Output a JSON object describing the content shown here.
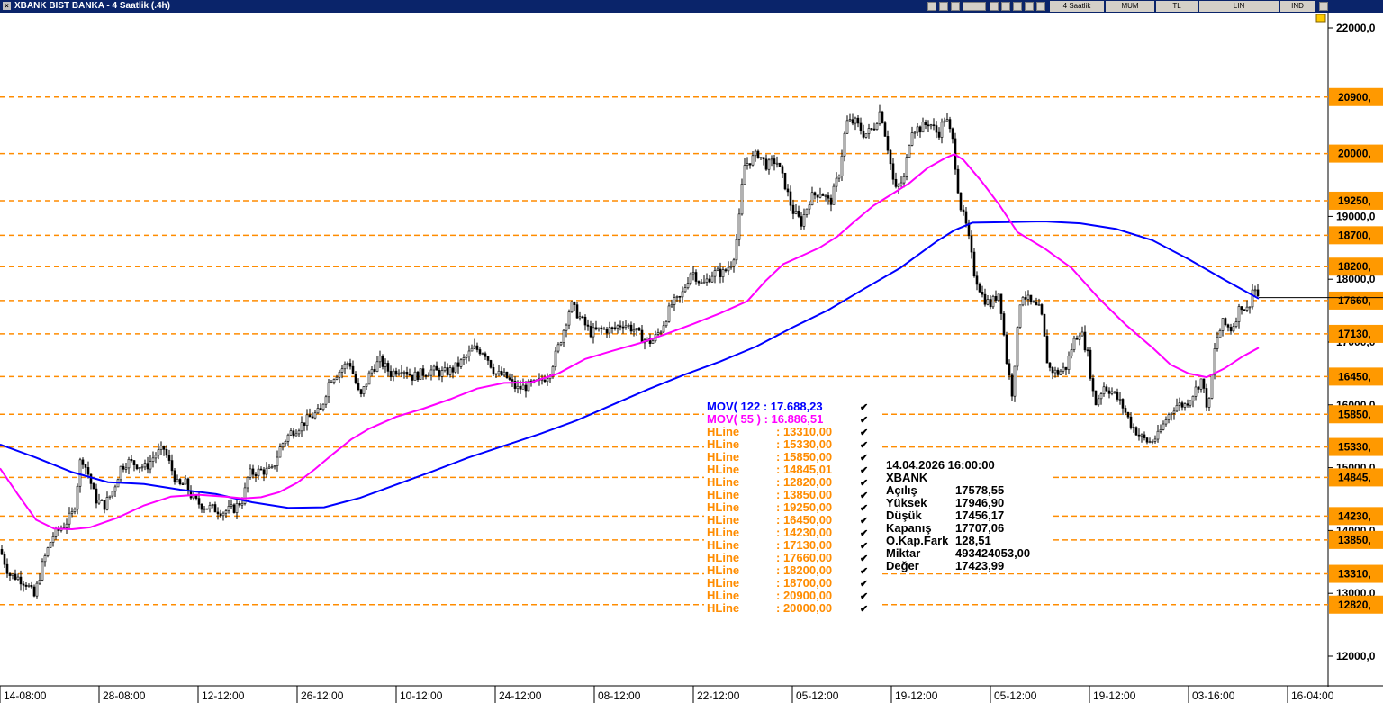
{
  "window": {
    "title": "XBANK BIST BANKA - 4 Saatlik (.4h)",
    "toolbar": {
      "interval": "4 Saatlik",
      "chart_style": "MUM",
      "currency": "TL",
      "scale": "LIN",
      "mode": "IND"
    }
  },
  "colors": {
    "mov122": "#0000ff",
    "mov55": "#ff00ff",
    "hline": "#ff8c00",
    "candle": "#000000",
    "hline_label_bg": "#ff9900"
  },
  "legend": {
    "mov122": "MOV( 122 : 17.688,23",
    "mov55": "MOV( 55 ) : 16.886,51",
    "hlines": [
      "HLine        : 13310,00",
      "HLine        : 15330,00",
      "HLine        : 15850,00",
      "HLine        : 14845,01",
      "HLine        : 12820,00",
      "HLine        : 13850,00",
      "HLine        : 19250,00",
      "HLine        : 16450,00",
      "HLine        : 14230,00",
      "HLine        : 17130,00",
      "HLine        : 17660,00",
      "HLine        : 18200,00",
      "HLine        : 18700,00",
      "HLine        : 20900,00",
      "HLine        : 20000,00"
    ]
  },
  "info": {
    "datetime": "14.04.2026  16:00:00",
    "symbol": "XBANK",
    "rows": [
      {
        "label": "Açılış",
        "value": "17578,55"
      },
      {
        "label": "Yüksek",
        "value": "17946,90"
      },
      {
        "label": "Düşük",
        "value": "17456,17"
      },
      {
        "label": "Kapanış",
        "value": "17707,06"
      },
      {
        "label": "O.Kap.Fark",
        "value": "128,51"
      },
      {
        "label": "Miktar",
        "value": "493424053,00"
      },
      {
        "label": "Değer",
        "value": "17423,99"
      }
    ]
  },
  "chart_data": {
    "type": "candlestick",
    "y_ticks": [
      "22000,0",
      "19000,0",
      "18000,0",
      "17000,0",
      "16000,0",
      "15000,0",
      "14000,0",
      "13000,0",
      "12000,0"
    ],
    "y_tick_values": [
      22000,
      19000,
      18000,
      17000,
      16000,
      15000,
      14000,
      13000,
      12000
    ],
    "ylim": [
      11600,
      22200
    ],
    "x_ticks": [
      "14-08:00",
      "28-08:00",
      "12-12:00",
      "26-12:00",
      "10-12:00",
      "24-12:00",
      "08-12:00",
      "22-12:00",
      "05-12:00",
      "19-12:00",
      "05-12:00",
      "19-12:00",
      "03-16:00",
      "16-04:00"
    ],
    "hline_values": [
      20900,
      20000,
      19250,
      18700,
      18200,
      17660,
      17130,
      16450,
      15850,
      15330,
      14845,
      14230,
      13850,
      13310,
      12820
    ],
    "hline_labels": [
      "20900,",
      "20000,",
      "19250,",
      "18700,",
      "18200,",
      "17660,",
      "17130,",
      "16450,",
      "15850,",
      "15330,",
      "14845,",
      "14230,",
      "13850,",
      "13310,",
      "12820,"
    ],
    "last_close": 17707.06,
    "close_path": [
      [
        0,
        13700
      ],
      [
        10,
        13300
      ],
      [
        20,
        13250
      ],
      [
        30,
        13150
      ],
      [
        38,
        12950
      ],
      [
        48,
        13500
      ],
      [
        58,
        13900
      ],
      [
        72,
        14100
      ],
      [
        82,
        14300
      ],
      [
        90,
        15200
      ],
      [
        98,
        14900
      ],
      [
        106,
        14500
      ],
      [
        116,
        14400
      ],
      [
        126,
        14650
      ],
      [
        134,
        15000
      ],
      [
        142,
        15100
      ],
      [
        152,
        15050
      ],
      [
        162,
        15000
      ],
      [
        172,
        15200
      ],
      [
        182,
        15300
      ],
      [
        190,
        15000
      ],
      [
        198,
        14700
      ],
      [
        206,
        14750
      ],
      [
        214,
        14500
      ],
      [
        224,
        14400
      ],
      [
        236,
        14350
      ],
      [
        248,
        14300
      ],
      [
        260,
        14350
      ],
      [
        270,
        14500
      ],
      [
        276,
        14900
      ],
      [
        290,
        14950
      ],
      [
        302,
        14950
      ],
      [
        312,
        15350
      ],
      [
        322,
        15550
      ],
      [
        332,
        15650
      ],
      [
        344,
        15800
      ],
      [
        356,
        15900
      ],
      [
        366,
        16400
      ],
      [
        378,
        16550
      ],
      [
        388,
        16700
      ],
      [
        400,
        16100
      ],
      [
        412,
        16550
      ],
      [
        422,
        16700
      ],
      [
        434,
        16500
      ],
      [
        446,
        16600
      ],
      [
        458,
        16450
      ],
      [
        468,
        16500
      ],
      [
        480,
        16550
      ],
      [
        490,
        16500
      ],
      [
        502,
        16550
      ],
      [
        514,
        16700
      ],
      [
        526,
        16900
      ],
      [
        538,
        16850
      ],
      [
        550,
        16500
      ],
      [
        562,
        16450
      ],
      [
        574,
        16250
      ],
      [
        586,
        16300
      ],
      [
        598,
        16350
      ],
      [
        610,
        16500
      ],
      [
        622,
        17000
      ],
      [
        634,
        17600
      ],
      [
        646,
        17350
      ],
      [
        656,
        17150
      ],
      [
        668,
        17200
      ],
      [
        680,
        17200
      ],
      [
        692,
        17300
      ],
      [
        704,
        17200
      ],
      [
        714,
        17050
      ],
      [
        724,
        17000
      ],
      [
        734,
        17200
      ],
      [
        746,
        17600
      ],
      [
        756,
        17700
      ],
      [
        768,
        18150
      ],
      [
        780,
        17900
      ],
      [
        792,
        18100
      ],
      [
        804,
        18100
      ],
      [
        814,
        18300
      ],
      [
        820,
        18800
      ],
      [
        826,
        19800
      ],
      [
        834,
        19900
      ],
      [
        842,
        20000
      ],
      [
        852,
        19800
      ],
      [
        862,
        19900
      ],
      [
        872,
        19500
      ],
      [
        880,
        19100
      ],
      [
        890,
        18900
      ],
      [
        900,
        19300
      ],
      [
        912,
        19400
      ],
      [
        922,
        19200
      ],
      [
        932,
        19700
      ],
      [
        940,
        20500
      ],
      [
        950,
        20500
      ],
      [
        960,
        20300
      ],
      [
        970,
        20400
      ],
      [
        978,
        20700
      ],
      [
        986,
        20100
      ],
      [
        994,
        19400
      ],
      [
        1004,
        19600
      ],
      [
        1012,
        20400
      ],
      [
        1022,
        20400
      ],
      [
        1032,
        20500
      ],
      [
        1042,
        20300
      ],
      [
        1050,
        20600
      ],
      [
        1058,
        20200
      ],
      [
        1066,
        19200
      ],
      [
        1074,
        18800
      ],
      [
        1082,
        18100
      ],
      [
        1092,
        17700
      ],
      [
        1100,
        17600
      ],
      [
        1110,
        17800
      ],
      [
        1118,
        16700
      ],
      [
        1124,
        16200
      ],
      [
        1134,
        17800
      ],
      [
        1146,
        17600
      ],
      [
        1156,
        17500
      ],
      [
        1164,
        16600
      ],
      [
        1174,
        16500
      ],
      [
        1184,
        16600
      ],
      [
        1192,
        17000
      ],
      [
        1200,
        17200
      ],
      [
        1208,
        16800
      ],
      [
        1216,
        16000
      ],
      [
        1226,
        16300
      ],
      [
        1236,
        16200
      ],
      [
        1246,
        16000
      ],
      [
        1256,
        15700
      ],
      [
        1266,
        15500
      ],
      [
        1276,
        15400
      ],
      [
        1286,
        15500
      ],
      [
        1296,
        15800
      ],
      [
        1306,
        16000
      ],
      [
        1316,
        16000
      ],
      [
        1326,
        16200
      ],
      [
        1334,
        16400
      ],
      [
        1342,
        15900
      ],
      [
        1350,
        17000
      ],
      [
        1358,
        17300
      ],
      [
        1368,
        17200
      ],
      [
        1378,
        17600
      ],
      [
        1386,
        17500
      ],
      [
        1392,
        17900
      ],
      [
        1398,
        17700
      ]
    ],
    "mov55_path": [
      [
        0,
        14990
      ],
      [
        20,
        14570
      ],
      [
        40,
        14170
      ],
      [
        60,
        14030
      ],
      [
        80,
        14020
      ],
      [
        100,
        14050
      ],
      [
        130,
        14200
      ],
      [
        160,
        14400
      ],
      [
        190,
        14540
      ],
      [
        220,
        14570
      ],
      [
        250,
        14540
      ],
      [
        270,
        14510
      ],
      [
        290,
        14530
      ],
      [
        310,
        14610
      ],
      [
        330,
        14760
      ],
      [
        350,
        14980
      ],
      [
        370,
        15220
      ],
      [
        390,
        15450
      ],
      [
        410,
        15620
      ],
      [
        440,
        15810
      ],
      [
        470,
        15940
      ],
      [
        500,
        16090
      ],
      [
        530,
        16260
      ],
      [
        560,
        16350
      ],
      [
        590,
        16360
      ],
      [
        620,
        16500
      ],
      [
        650,
        16730
      ],
      [
        680,
        16860
      ],
      [
        710,
        16980
      ],
      [
        740,
        17130
      ],
      [
        770,
        17290
      ],
      [
        800,
        17460
      ],
      [
        830,
        17650
      ],
      [
        850,
        17970
      ],
      [
        870,
        18240
      ],
      [
        890,
        18370
      ],
      [
        910,
        18500
      ],
      [
        930,
        18680
      ],
      [
        950,
        18930
      ],
      [
        970,
        19170
      ],
      [
        990,
        19350
      ],
      [
        1010,
        19530
      ],
      [
        1030,
        19770
      ],
      [
        1050,
        19930
      ],
      [
        1060,
        19990
      ],
      [
        1070,
        19900
      ],
      [
        1090,
        19560
      ],
      [
        1110,
        19180
      ],
      [
        1130,
        18750
      ],
      [
        1160,
        18490
      ],
      [
        1190,
        18180
      ],
      [
        1220,
        17700
      ],
      [
        1250,
        17280
      ],
      [
        1280,
        16910
      ],
      [
        1300,
        16640
      ],
      [
        1320,
        16500
      ],
      [
        1340,
        16440
      ],
      [
        1360,
        16580
      ],
      [
        1380,
        16770
      ],
      [
        1398,
        16910
      ]
    ],
    "mov122_path": [
      [
        0,
        15370
      ],
      [
        40,
        15160
      ],
      [
        80,
        14930
      ],
      [
        120,
        14770
      ],
      [
        160,
        14740
      ],
      [
        200,
        14650
      ],
      [
        240,
        14580
      ],
      [
        280,
        14450
      ],
      [
        320,
        14360
      ],
      [
        360,
        14370
      ],
      [
        400,
        14520
      ],
      [
        440,
        14730
      ],
      [
        480,
        14940
      ],
      [
        520,
        15160
      ],
      [
        560,
        15350
      ],
      [
        600,
        15540
      ],
      [
        640,
        15750
      ],
      [
        680,
        16000
      ],
      [
        720,
        16250
      ],
      [
        760,
        16480
      ],
      [
        800,
        16690
      ],
      [
        840,
        16930
      ],
      [
        880,
        17230
      ],
      [
        920,
        17510
      ],
      [
        960,
        17850
      ],
      [
        1000,
        18180
      ],
      [
        1040,
        18600
      ],
      [
        1060,
        18780
      ],
      [
        1080,
        18900
      ],
      [
        1120,
        18910
      ],
      [
        1160,
        18920
      ],
      [
        1200,
        18890
      ],
      [
        1240,
        18800
      ],
      [
        1280,
        18620
      ],
      [
        1320,
        18320
      ],
      [
        1360,
        17990
      ],
      [
        1398,
        17690
      ]
    ]
  }
}
